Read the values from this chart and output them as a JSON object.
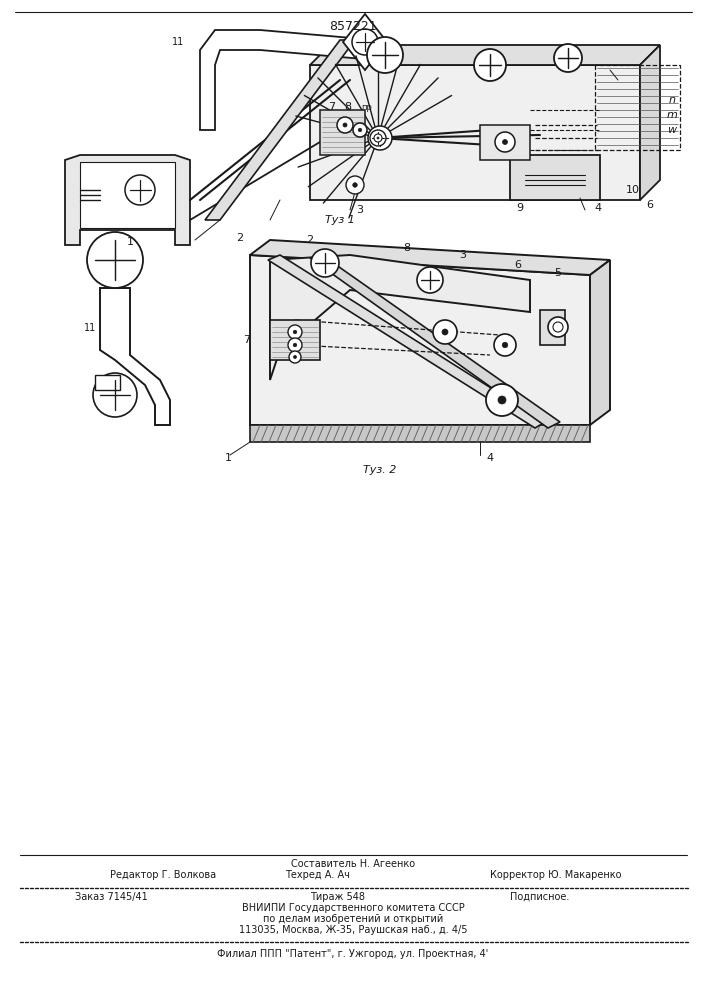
{
  "patent_number": "857221",
  "fig1_caption": "Τуз 1",
  "fig2_caption": "Τуз. 2",
  "editor_line": "Редактор Г. Волкова",
  "compiler_line": "Составитель Н. Агеенко",
  "techred_line": "Техред А. Ач",
  "corrector_line": "Корректор Ю. Макаренко",
  "order_line": "Заказ 7145/41",
  "tirazh_line": "Тираж 548",
  "podpisnoe_line": "Подписное.",
  "vniip_line": "ВНИИПИ Государственного комитета СССР",
  "po_delam_line": "по делам изобретений и открытий",
  "address_line": "113035, Москва, Ж-35, Раушская наб., д. 4/5",
  "filial_line": "Филиал ППП \"Патент\", г. Ужгород, ул. Проектная, 4'",
  "bg_color": "#ffffff",
  "line_color": "#1a1a1a",
  "text_color": "#1a1a1a"
}
